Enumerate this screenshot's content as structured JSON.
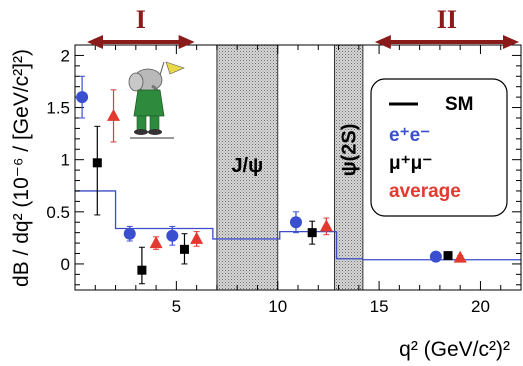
{
  "chart_data": {
    "type": "scatter",
    "title": "",
    "xlabel": "q² (GeV/c²)²",
    "ylabel": "dB / dq² (10⁻⁶ / [GeV/c²]²)",
    "xlim": [
      0,
      22
    ],
    "ylim": [
      -0.25,
      2.1
    ],
    "x_ticks": [
      {
        "value": 5,
        "label": "5"
      },
      {
        "value": 10,
        "label": "10"
      },
      {
        "value": 15,
        "label": "15"
      },
      {
        "value": 20,
        "label": "20"
      }
    ],
    "y_ticks": [
      {
        "value": 0,
        "label": "0"
      },
      {
        "value": 0.5,
        "label": "0.5"
      },
      {
        "value": 1,
        "label": "1"
      },
      {
        "value": 1.5,
        "label": "1.5"
      },
      {
        "value": 2,
        "label": "2"
      }
    ],
    "legend": {
      "position": "right",
      "entries": [
        {
          "label": "SM",
          "color": "#000000"
        },
        {
          "label": "e⁺e⁻",
          "color": "#3a4fd0"
        },
        {
          "label": "μ⁺μ⁻",
          "color": "#000000"
        },
        {
          "label": "average",
          "color": "#e23a2f"
        }
      ]
    },
    "series": [
      {
        "name": "e⁺e⁻",
        "color": "#3a4fd0",
        "marker": "circle",
        "points": [
          {
            "x": 0.35,
            "y": 1.6,
            "err": [
              0.2,
              0.2
            ]
          },
          {
            "x": 2.7,
            "y": 0.29,
            "err": [
              0.07,
              0.07
            ]
          },
          {
            "x": 4.8,
            "y": 0.27,
            "err": [
              0.09,
              0.09
            ]
          },
          {
            "x": 10.9,
            "y": 0.4,
            "err": [
              0.1,
              0.1
            ]
          },
          {
            "x": 17.8,
            "y": 0.07,
            "err": [
              0.03,
              0.03
            ]
          }
        ]
      },
      {
        "name": "μ⁺μ⁻",
        "color": "#000000",
        "marker": "square",
        "points": [
          {
            "x": 1.1,
            "y": 0.97,
            "err": [
              0.5,
              0.35
            ]
          },
          {
            "x": 3.3,
            "y": -0.06,
            "err": [
              0.13,
              0.22
            ]
          },
          {
            "x": 5.4,
            "y": 0.14,
            "err": [
              0.14,
              0.15
            ]
          },
          {
            "x": 11.7,
            "y": 0.3,
            "err": [
              0.11,
              0.11
            ]
          },
          {
            "x": 18.4,
            "y": 0.08,
            "err": [
              0.03,
              0.03
            ]
          }
        ]
      },
      {
        "name": "average",
        "color": "#e23a2f",
        "marker": "triangle",
        "points": [
          {
            "x": 1.9,
            "y": 1.42,
            "err": [
              0.25,
              0.25
            ]
          },
          {
            "x": 4.0,
            "y": 0.2,
            "err": [
              0.06,
              0.06
            ]
          },
          {
            "x": 6.0,
            "y": 0.24,
            "err": [
              0.07,
              0.07
            ]
          },
          {
            "x": 12.4,
            "y": 0.36,
            "err": [
              0.08,
              0.08
            ]
          },
          {
            "x": 19.0,
            "y": 0.06,
            "err": [
              0.02,
              0.02
            ]
          }
        ]
      }
    ],
    "sm_curve": {
      "name": "SM",
      "color": "#3b4cc8",
      "steps": [
        {
          "x0": 0.0,
          "x1": 2.0,
          "y": 0.7
        },
        {
          "x0": 2.0,
          "x1": 4.3,
          "y": 0.34
        },
        {
          "x0": 4.3,
          "x1": 6.8,
          "y": 0.34
        },
        {
          "x0": 6.8,
          "x1": 10.1,
          "y": 0.24
        },
        {
          "x0": 10.1,
          "x1": 12.9,
          "y": 0.31
        },
        {
          "x0": 12.9,
          "x1": 14.2,
          "y": 0.05
        },
        {
          "x0": 14.2,
          "x1": 22.0,
          "y": 0.04
        }
      ]
    },
    "vetoed_bands": [
      {
        "x0": 7.0,
        "x1": 10.0,
        "label": "J/ψ"
      },
      {
        "x0": 12.8,
        "x1": 14.2,
        "label": "ψ(2S)"
      }
    ],
    "regions": [
      {
        "label": "I",
        "x0": 0.0,
        "x1": 6.0
      },
      {
        "label": "II",
        "x0": 14.2,
        "x1": 22.0
      }
    ],
    "region_color": "#8b1a1a"
  }
}
